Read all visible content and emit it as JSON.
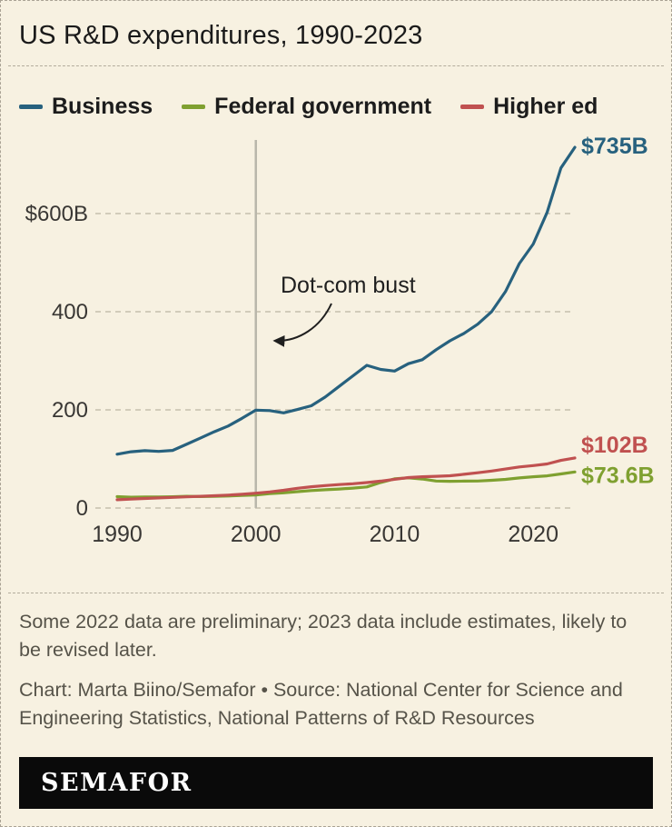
{
  "header": {
    "title": "US R&D expenditures, 1990-2023"
  },
  "chart_data": {
    "type": "line",
    "title": "US R&D expenditures, 1990-2023",
    "xlabel": "",
    "ylabel": "",
    "ylim": [
      0,
      760
    ],
    "grid": "dashed-horizontal",
    "legend_position": "top",
    "x": [
      1990,
      1991,
      1992,
      1993,
      1994,
      1995,
      1996,
      1997,
      1998,
      1999,
      2000,
      2001,
      2002,
      2003,
      2004,
      2005,
      2006,
      2007,
      2008,
      2009,
      2010,
      2011,
      2012,
      2013,
      2014,
      2015,
      2016,
      2017,
      2018,
      2019,
      2020,
      2021,
      2022,
      2023
    ],
    "series": [
      {
        "name": "Business",
        "color": "#27617e",
        "end_label": "$735B",
        "values": [
          109.7,
          114.7,
          116.8,
          115.4,
          117.4,
          129.8,
          142.4,
          155.4,
          167.1,
          182.7,
          199.5,
          198.5,
          193.9,
          200.7,
          208.3,
          226.2,
          247.7,
          269.3,
          290.7,
          282.4,
          279.0,
          294.1,
          302.3,
          322.5,
          340.7,
          355.8,
          374.7,
          400.1,
          441.0,
          498.2,
          538.0,
          602.5,
          693.0,
          735.0
        ]
      },
      {
        "name": "Federal government",
        "color": "#7fa030",
        "end_label": "$73.6B",
        "values": [
          23.1,
          22.1,
          22.4,
          22.5,
          22.9,
          23.8,
          23.3,
          23.8,
          24.5,
          25.5,
          26.6,
          29.2,
          31.0,
          33.4,
          35.5,
          37.2,
          38.7,
          40.5,
          42.9,
          52.0,
          59.5,
          61.5,
          59.0,
          55.0,
          54.5,
          54.8,
          55.0,
          56.5,
          58.4,
          61.3,
          63.7,
          65.6,
          69.4,
          73.6
        ]
      },
      {
        "name": "Higher ed",
        "color": "#c05150",
        "end_label": "$102B",
        "values": [
          16.9,
          18.2,
          19.5,
          20.6,
          21.7,
          22.7,
          23.8,
          25.0,
          26.3,
          28.0,
          30.2,
          32.8,
          36.1,
          40.1,
          43.3,
          45.8,
          47.7,
          49.5,
          51.9,
          54.9,
          58.5,
          62.0,
          63.7,
          64.7,
          65.8,
          68.7,
          71.8,
          75.3,
          79.4,
          83.7,
          86.4,
          89.9,
          97.0,
          102.0
        ]
      }
    ],
    "y_ticks": [
      {
        "value": 600,
        "label": "$600B"
      },
      {
        "value": 400,
        "label": "400"
      },
      {
        "value": 200,
        "label": "200"
      },
      {
        "value": 0,
        "label": "0"
      }
    ],
    "x_ticks": [
      1990,
      2000,
      2010,
      2020
    ],
    "event_line": {
      "year": 2000
    },
    "annotation": {
      "text": "Dot-com bust",
      "points_to_year": 2000
    }
  },
  "footer": {
    "note": "Some 2022 data are preliminary; 2023 data include estimates, likely to be revised later.",
    "credit": "Chart: Marta Biino/Semafor • Source: National Center for Science and Engineering Statistics, National Patterns of R&D Resources",
    "logo": "SEMAFOR"
  }
}
